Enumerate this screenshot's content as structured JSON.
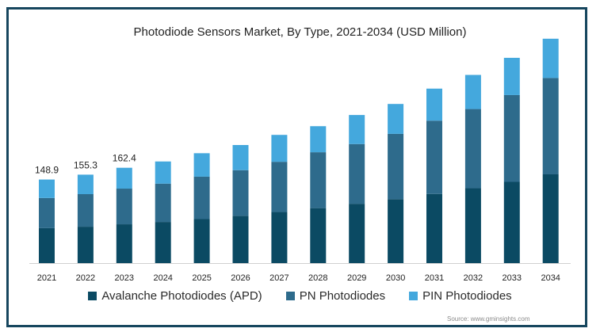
{
  "chart_data": {
    "type": "bar",
    "stacked": true,
    "title": "Photodiode Sensors Market, By Type, 2021-2034 (USD Million)",
    "categories": [
      "2021",
      "2022",
      "2023",
      "2024",
      "2025",
      "2026",
      "2027",
      "2028",
      "2029",
      "2030",
      "2031",
      "2032",
      "2033",
      "2034"
    ],
    "series": [
      {
        "name": "Avalanche Photodiodes (APD)",
        "color": "#0b4a63",
        "values": [
          53.8,
          56.0,
          59.7,
          63.3,
          67.7,
          72.8,
          78.6,
          84.6,
          91.3,
          98.4,
          106.4,
          115.2,
          125.0,
          136.6
        ]
      },
      {
        "name": "PN Photodiodes",
        "color": "#2e6b8c",
        "values": [
          46.4,
          50.1,
          54.9,
          59.0,
          65.3,
          70.2,
          77.3,
          86.0,
          91.9,
          100.5,
          112.8,
          121.9,
          133.6,
          148.3
        ]
      },
      {
        "name": "PIN Photodiodes",
        "color": "#44a8dd",
        "values": [
          28.4,
          30.0,
          32.1,
          34.1,
          36.1,
          38.7,
          41.4,
          40.1,
          44.7,
          46.0,
          49.3,
          52.5,
          57.3,
          60.4
        ]
      }
    ],
    "data_labels": [
      "148.9",
      "155.3",
      "162.4"
    ],
    "ylim": [
      0,
      350
    ],
    "y_axis_visible": false,
    "grid": false,
    "legend_position": "bottom",
    "source": "Source: www.gminsights.com"
  }
}
